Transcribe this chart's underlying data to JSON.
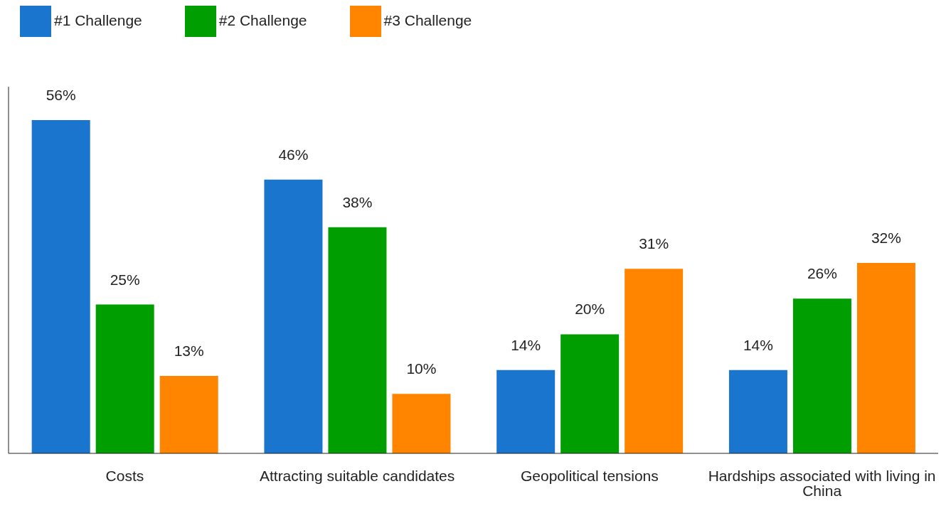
{
  "chart_data": {
    "type": "bar",
    "categories": [
      "Costs",
      "Attracting suitable candidates",
      "Geopolitical tensions",
      "Hardships associated with living in China"
    ],
    "series": [
      {
        "name": "#1 Challenge",
        "color": "#1a75cf",
        "values": [
          56,
          46,
          14,
          14
        ],
        "value_labels": [
          "56%",
          "46%",
          "14%",
          "14%"
        ]
      },
      {
        "name": "#2 Challenge",
        "color": "#009e00",
        "values": [
          25,
          38,
          20,
          26
        ],
        "value_labels": [
          "25%",
          "38%",
          "20%",
          "26%"
        ]
      },
      {
        "name": "#3 Challenge",
        "color": "#ff8500",
        "values": [
          13,
          10,
          31,
          32
        ],
        "value_labels": [
          "13%",
          "10%",
          "31%",
          "32%"
        ]
      }
    ],
    "legend": "top left",
    "grid": false,
    "tick_labels": "x"
  }
}
